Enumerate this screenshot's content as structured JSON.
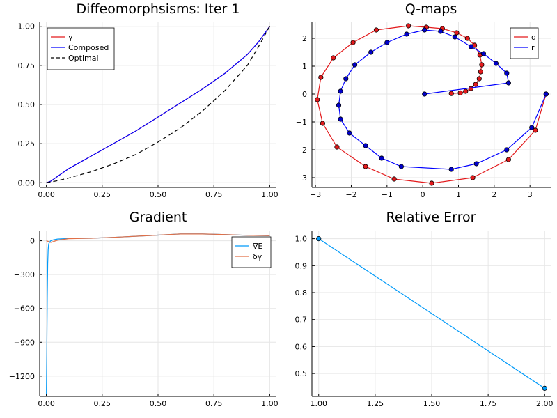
{
  "chart_data": [
    {
      "id": "p1",
      "type": "line",
      "title": "Diffeomorphsisms: Iter 1",
      "xlim": [
        -0.03,
        1.03
      ],
      "ylim": [
        -0.03,
        1.03
      ],
      "xticks": [
        0.0,
        0.25,
        0.5,
        0.75,
        1.0
      ],
      "xtick_labels": [
        "0.00",
        "0.25",
        "0.50",
        "0.75",
        "1.00"
      ],
      "yticks": [
        0.0,
        0.25,
        0.5,
        0.75,
        1.0
      ],
      "ytick_labels": [
        "0.00",
        "0.25",
        "0.50",
        "0.75",
        "1.00"
      ],
      "grid": true,
      "legend": "top-left",
      "series": [
        {
          "name": "γ",
          "color": "#e31a1c",
          "dash": false,
          "x": [
            0.0,
            0.02,
            0.05,
            0.1,
            0.15,
            0.2,
            0.3,
            0.4,
            0.5,
            0.6,
            0.7,
            0.8,
            0.9,
            0.95,
            1.0
          ],
          "y": [
            0.0,
            0.01,
            0.04,
            0.09,
            0.13,
            0.17,
            0.25,
            0.33,
            0.42,
            0.51,
            0.6,
            0.7,
            0.82,
            0.9,
            1.0
          ]
        },
        {
          "name": "Composed",
          "color": "#0000ff",
          "dash": false,
          "x": [
            0.0,
            0.02,
            0.05,
            0.1,
            0.15,
            0.2,
            0.3,
            0.4,
            0.5,
            0.6,
            0.7,
            0.8,
            0.9,
            0.95,
            1.0
          ],
          "y": [
            0.0,
            0.01,
            0.04,
            0.09,
            0.13,
            0.17,
            0.25,
            0.33,
            0.42,
            0.51,
            0.6,
            0.7,
            0.82,
            0.9,
            1.0
          ]
        },
        {
          "name": "Optimal",
          "color": "#000000",
          "dash": true,
          "x": [
            0.0,
            0.05,
            0.1,
            0.2,
            0.3,
            0.4,
            0.5,
            0.6,
            0.7,
            0.8,
            0.9,
            0.95,
            1.0
          ],
          "y": [
            0.0,
            0.013,
            0.03,
            0.07,
            0.12,
            0.18,
            0.26,
            0.35,
            0.46,
            0.59,
            0.75,
            0.87,
            1.0
          ]
        }
      ]
    },
    {
      "id": "p2",
      "type": "line",
      "title": "Q-maps",
      "xlim": [
        -3.1,
        3.6
      ],
      "ylim": [
        -3.35,
        2.6
      ],
      "xticks": [
        -3,
        -2,
        -1,
        0,
        1,
        2,
        3
      ],
      "xtick_labels": [
        "−3",
        "−2",
        "−1",
        "0",
        "1",
        "2",
        "3"
      ],
      "yticks": [
        -3,
        -2,
        -1,
        0,
        1,
        2
      ],
      "ytick_labels": [
        "−3",
        "−2",
        "−1",
        "0",
        "1",
        "2"
      ],
      "grid": true,
      "legend": "top-right",
      "series": [
        {
          "name": "q",
          "color": "#e31a1c",
          "marker_fill": "#e31a1c",
          "x": [
            3.45,
            3.15,
            2.4,
            1.4,
            0.25,
            -0.8,
            -1.6,
            -2.4,
            -2.8,
            -2.95,
            -2.85,
            -2.5,
            -1.95,
            -1.3,
            -0.4,
            0.1,
            0.55,
            0.95,
            1.25,
            1.45,
            1.6,
            1.65,
            1.62,
            1.58,
            1.48,
            1.35,
            1.2,
            1.05,
            0.8
          ],
          "y": [
            0.0,
            -1.3,
            -2.35,
            -3.0,
            -3.2,
            -3.05,
            -2.6,
            -1.9,
            -1.05,
            -0.2,
            0.6,
            1.3,
            1.85,
            2.3,
            2.45,
            2.4,
            2.35,
            2.2,
            2.0,
            1.75,
            1.4,
            1.05,
            0.8,
            0.55,
            0.35,
            0.2,
            0.1,
            0.04,
            0.02
          ]
        },
        {
          "name": "r",
          "color": "#0000ff",
          "marker_fill": "#0000cc",
          "x": [
            3.45,
            3.05,
            2.35,
            1.5,
            0.8,
            -0.6,
            -1.15,
            -1.6,
            -2.05,
            -2.3,
            -2.35,
            -2.3,
            -2.15,
            -1.9,
            -1.45,
            -1.0,
            -0.45,
            0.05,
            0.5,
            0.9,
            1.35,
            1.7,
            2.05,
            2.35,
            2.4,
            0.05
          ],
          "y": [
            0.0,
            -1.2,
            -2.0,
            -2.5,
            -2.7,
            -2.6,
            -2.3,
            -1.85,
            -1.4,
            -0.9,
            -0.4,
            0.1,
            0.55,
            1.05,
            1.5,
            1.85,
            2.15,
            2.3,
            2.25,
            2.05,
            1.7,
            1.45,
            1.1,
            0.75,
            0.4,
            0.0
          ]
        }
      ]
    },
    {
      "id": "p3",
      "type": "line",
      "title": "Gradient",
      "xlim": [
        -0.03,
        1.03
      ],
      "ylim": [
        -1380,
        90
      ],
      "xticks": [
        0.0,
        0.25,
        0.5,
        0.75,
        1.0
      ],
      "xtick_labels": [
        "0.00",
        "0.25",
        "0.50",
        "0.75",
        "1.00"
      ],
      "yticks": [
        -1200,
        -900,
        -600,
        -300,
        0
      ],
      "ytick_labels": [
        "−1200",
        "−900",
        "−600",
        "−300",
        "0"
      ],
      "grid": true,
      "legend": "top-right",
      "series": [
        {
          "name": "∇E",
          "color": "#009af9",
          "x": [
            0.0,
            0.002,
            0.004,
            0.006,
            0.008,
            0.01,
            0.015,
            0.02,
            0.03,
            0.05,
            0.1,
            0.2,
            0.3,
            0.4,
            0.5,
            0.6,
            0.7,
            0.8,
            0.9,
            1.0
          ],
          "y": [
            -1380,
            -1000,
            -500,
            -200,
            -80,
            -30,
            -10,
            0,
            8,
            15,
            20,
            22,
            30,
            40,
            50,
            60,
            60,
            55,
            48,
            45
          ]
        },
        {
          "name": "δγ",
          "color": "#e26f46",
          "x": [
            0.0,
            0.02,
            0.05,
            0.1,
            0.2,
            0.3,
            0.4,
            0.5,
            0.6,
            0.7,
            0.8,
            0.9,
            1.0
          ],
          "y": [
            0,
            -15,
            5,
            18,
            22,
            30,
            40,
            50,
            60,
            60,
            55,
            48,
            45
          ]
        }
      ]
    },
    {
      "id": "p4",
      "type": "line",
      "title": "Relative Error",
      "xlim": [
        0.97,
        2.03
      ],
      "ylim": [
        0.415,
        1.03
      ],
      "xticks": [
        1.0,
        1.25,
        1.5,
        1.75,
        2.0
      ],
      "xtick_labels": [
        "1.00",
        "1.25",
        "1.50",
        "1.75",
        "2.00"
      ],
      "yticks": [
        0.5,
        0.6,
        0.7,
        0.8,
        0.9,
        1.0
      ],
      "ytick_labels": [
        "0.5",
        "0.6",
        "0.7",
        "0.8",
        "0.9",
        "1.0"
      ],
      "grid": true,
      "legend": "none",
      "series": [
        {
          "name": "",
          "color": "#009af9",
          "marker_fill": "#009af9",
          "x": [
            1.0,
            2.0
          ],
          "y": [
            1.0,
            0.445
          ]
        }
      ]
    }
  ]
}
